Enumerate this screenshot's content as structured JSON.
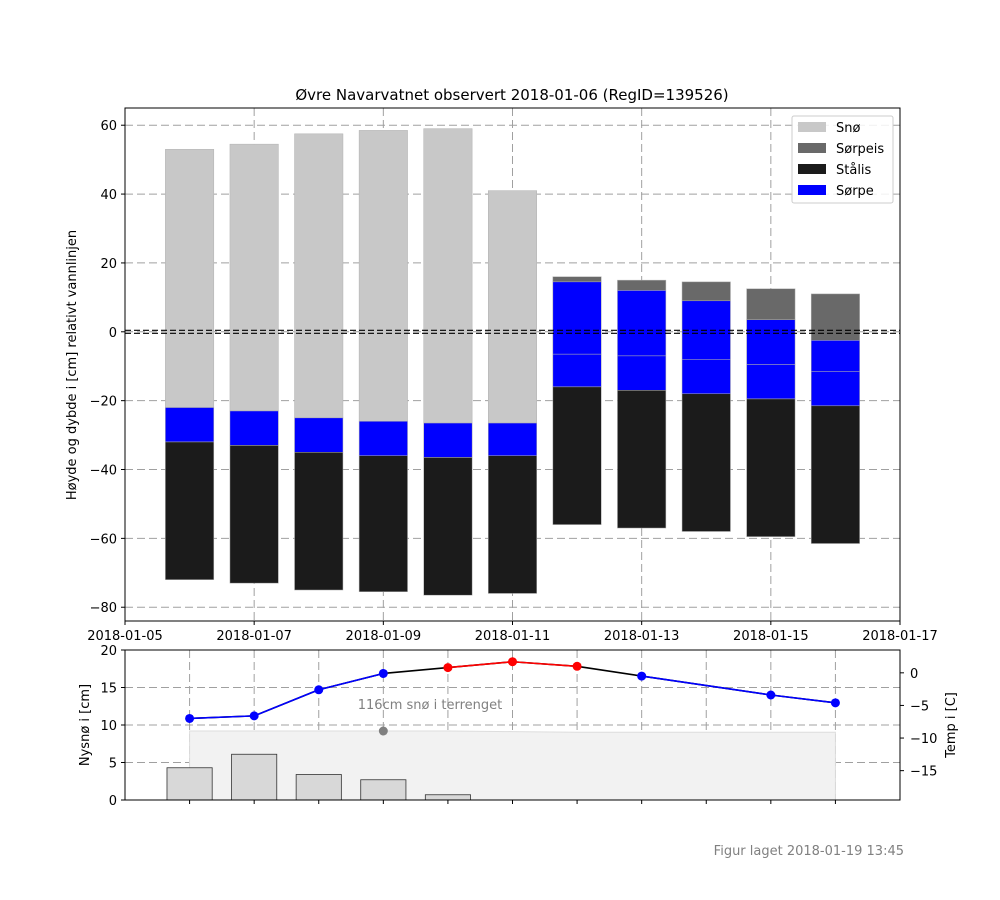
{
  "figure_note": "Figur laget 2018-01-19 13:45",
  "chart_data": [
    {
      "type": "bar",
      "title": "Øvre Navarvatnet observert 2018-01-06 (RegID=139526)",
      "ylabel": "Høyde og dybde i [cm] relativt vannlinjen",
      "xlabel": "",
      "ylim": [
        -84,
        65
      ],
      "xlim": [
        "2018-01-05",
        "2018-01-17"
      ],
      "yticks": [
        60,
        40,
        20,
        0,
        -20,
        -40,
        -60,
        -80
      ],
      "xticks": [
        "2018-01-05",
        "2018-01-07",
        "2018-01-09",
        "2018-01-11",
        "2018-01-13",
        "2018-01-15",
        "2018-01-17"
      ],
      "grid": true,
      "legend_position": "top-right",
      "water_line": 0,
      "legend": [
        {
          "label": "Snø",
          "color": "#c8c8c8"
        },
        {
          "label": "Sørpeis",
          "color": "#696969"
        },
        {
          "label": "Stålis",
          "color": "#1b1b1b"
        },
        {
          "label": "Sørpe",
          "color": "#0000ff"
        }
      ],
      "colors": {
        "Snø": "#c8c8c8",
        "Sørpeis": "#696969",
        "Stålis": "#1b1b1b",
        "Sørpe": "#0000ff"
      },
      "columns": [
        {
          "date": "2018-01-06",
          "layers": [
            {
              "type": "Snø",
              "top": 53,
              "bottom": -22
            },
            {
              "type": "Sørpe",
              "top": -22,
              "bottom": -32
            },
            {
              "type": "Stålis",
              "top": -32,
              "bottom": -72
            }
          ]
        },
        {
          "date": "2018-01-07",
          "layers": [
            {
              "type": "Snø",
              "top": 54.5,
              "bottom": -23
            },
            {
              "type": "Sørpe",
              "top": -23,
              "bottom": -33
            },
            {
              "type": "Stålis",
              "top": -33,
              "bottom": -73
            }
          ]
        },
        {
          "date": "2018-01-08",
          "layers": [
            {
              "type": "Snø",
              "top": 57.5,
              "bottom": -25
            },
            {
              "type": "Sørpe",
              "top": -25,
              "bottom": -35
            },
            {
              "type": "Stålis",
              "top": -35,
              "bottom": -75
            }
          ]
        },
        {
          "date": "2018-01-09",
          "layers": [
            {
              "type": "Snø",
              "top": 58.5,
              "bottom": -26
            },
            {
              "type": "Sørpe",
              "top": -26,
              "bottom": -36
            },
            {
              "type": "Stålis",
              "top": -36,
              "bottom": -75.5
            }
          ]
        },
        {
          "date": "2018-01-10",
          "layers": [
            {
              "type": "Snø",
              "top": 59,
              "bottom": -26.5
            },
            {
              "type": "Sørpe",
              "top": -26.5,
              "bottom": -36.5
            },
            {
              "type": "Stålis",
              "top": -36.5,
              "bottom": -76.5
            }
          ]
        },
        {
          "date": "2018-01-11",
          "layers": [
            {
              "type": "Snø",
              "top": 41,
              "bottom": -26.5
            },
            {
              "type": "Sørpe",
              "top": -26.5,
              "bottom": -36
            },
            {
              "type": "Stålis",
              "top": -36,
              "bottom": -76
            }
          ]
        },
        {
          "date": "2018-01-12",
          "layers": [
            {
              "type": "Sørpeis",
              "top": 16,
              "bottom": 14.5
            },
            {
              "type": "Sørpe",
              "top": 14.5,
              "bottom": -6.5
            },
            {
              "type": "Sørpe",
              "top": -6.5,
              "bottom": -16
            },
            {
              "type": "Stålis",
              "top": -16,
              "bottom": -56
            }
          ]
        },
        {
          "date": "2018-01-13",
          "layers": [
            {
              "type": "Sørpeis",
              "top": 15,
              "bottom": 12
            },
            {
              "type": "Sørpe",
              "top": 12,
              "bottom": -7
            },
            {
              "type": "Sørpe",
              "top": -7,
              "bottom": -17
            },
            {
              "type": "Stålis",
              "top": -17,
              "bottom": -57
            }
          ]
        },
        {
          "date": "2018-01-14",
          "layers": [
            {
              "type": "Sørpeis",
              "top": 14.5,
              "bottom": 9
            },
            {
              "type": "Sørpe",
              "top": 9,
              "bottom": -8
            },
            {
              "type": "Sørpe",
              "top": -8,
              "bottom": -18
            },
            {
              "type": "Stålis",
              "top": -18,
              "bottom": -58
            }
          ]
        },
        {
          "date": "2018-01-15",
          "layers": [
            {
              "type": "Sørpeis",
              "top": 12.5,
              "bottom": 3.5
            },
            {
              "type": "Sørpe",
              "top": 3.5,
              "bottom": -9.5
            },
            {
              "type": "Sørpe",
              "top": -9.5,
              "bottom": -19.5
            },
            {
              "type": "Stålis",
              "top": -19.5,
              "bottom": -59.5
            }
          ]
        },
        {
          "date": "2018-01-16",
          "layers": [
            {
              "type": "Sørpeis",
              "top": 11,
              "bottom": -2.5
            },
            {
              "type": "Sørpe",
              "top": -2.5,
              "bottom": -11.5
            },
            {
              "type": "Sørpe",
              "top": -11.5,
              "bottom": -21.5
            },
            {
              "type": "Stålis",
              "top": -21.5,
              "bottom": -61.5
            }
          ]
        }
      ]
    },
    {
      "type": "bar+line",
      "ylabel_left": "Nysnø i [cm]",
      "ylabel_right": "Temp i [C]",
      "ylim_left": [
        0,
        20
      ],
      "yticks_left": [
        0,
        5,
        10,
        15,
        20
      ],
      "ylim_right": [
        -19.5,
        3.5
      ],
      "yticks_right": [
        0,
        -5,
        -10,
        -15
      ],
      "grid": true,
      "x": [
        "2018-01-06",
        "2018-01-07",
        "2018-01-08",
        "2018-01-09",
        "2018-01-10",
        "2018-01-11",
        "2018-01-12",
        "2018-01-13",
        "2018-01-14",
        "2018-01-15",
        "2018-01-16"
      ],
      "new_snow": [
        4.3,
        6.1,
        3.4,
        2.7,
        0.7,
        0,
        0,
        0,
        0,
        0,
        0
      ],
      "terrain_snow_depth": [
        116,
        116,
        116,
        116,
        116,
        115,
        114,
        114,
        114,
        114,
        114
      ],
      "terrain_label": "116cm snø i terrenget",
      "terrain_label_date": "2018-01-09",
      "terrain_snow_marker": 9.2,
      "temperature": [
        -7.0,
        -6.6,
        -2.6,
        -0.1,
        0.8,
        1.7,
        1.0,
        -0.5,
        null,
        -3.4,
        -4.6
      ],
      "temperature_colors": [
        "#0000ff",
        "#0000ff",
        "#0000ff",
        "#0000ff",
        "#ff0000",
        "#ff0000",
        "#ff0000",
        "#0000ff",
        null,
        "#0000ff",
        "#0000ff"
      ],
      "colors": {
        "new_snow": "#d8d8d8",
        "terrain": "#f2f2f2",
        "cold": "#0000ff",
        "warm": "#ff0000",
        "line": "#000000",
        "marker": "#808080"
      }
    }
  ]
}
